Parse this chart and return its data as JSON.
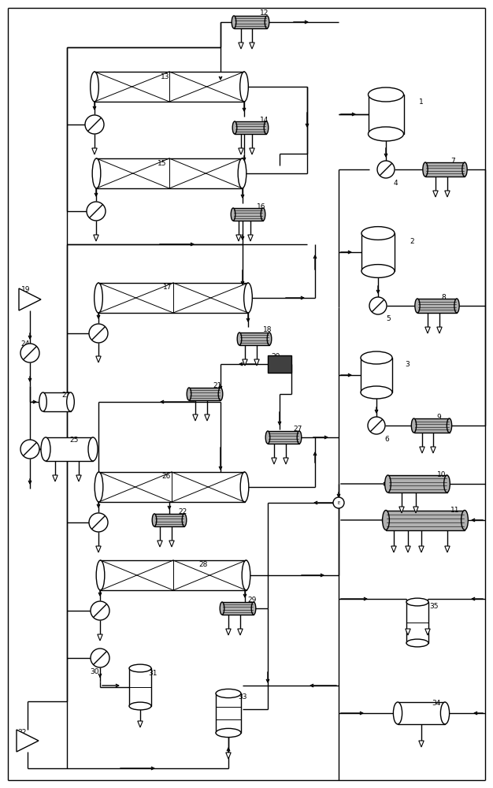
{
  "bg_color": "#ffffff",
  "line_color": "#000000",
  "figsize": [
    6.26,
    10.0
  ],
  "dpi": 100,
  "lw": 1.0
}
